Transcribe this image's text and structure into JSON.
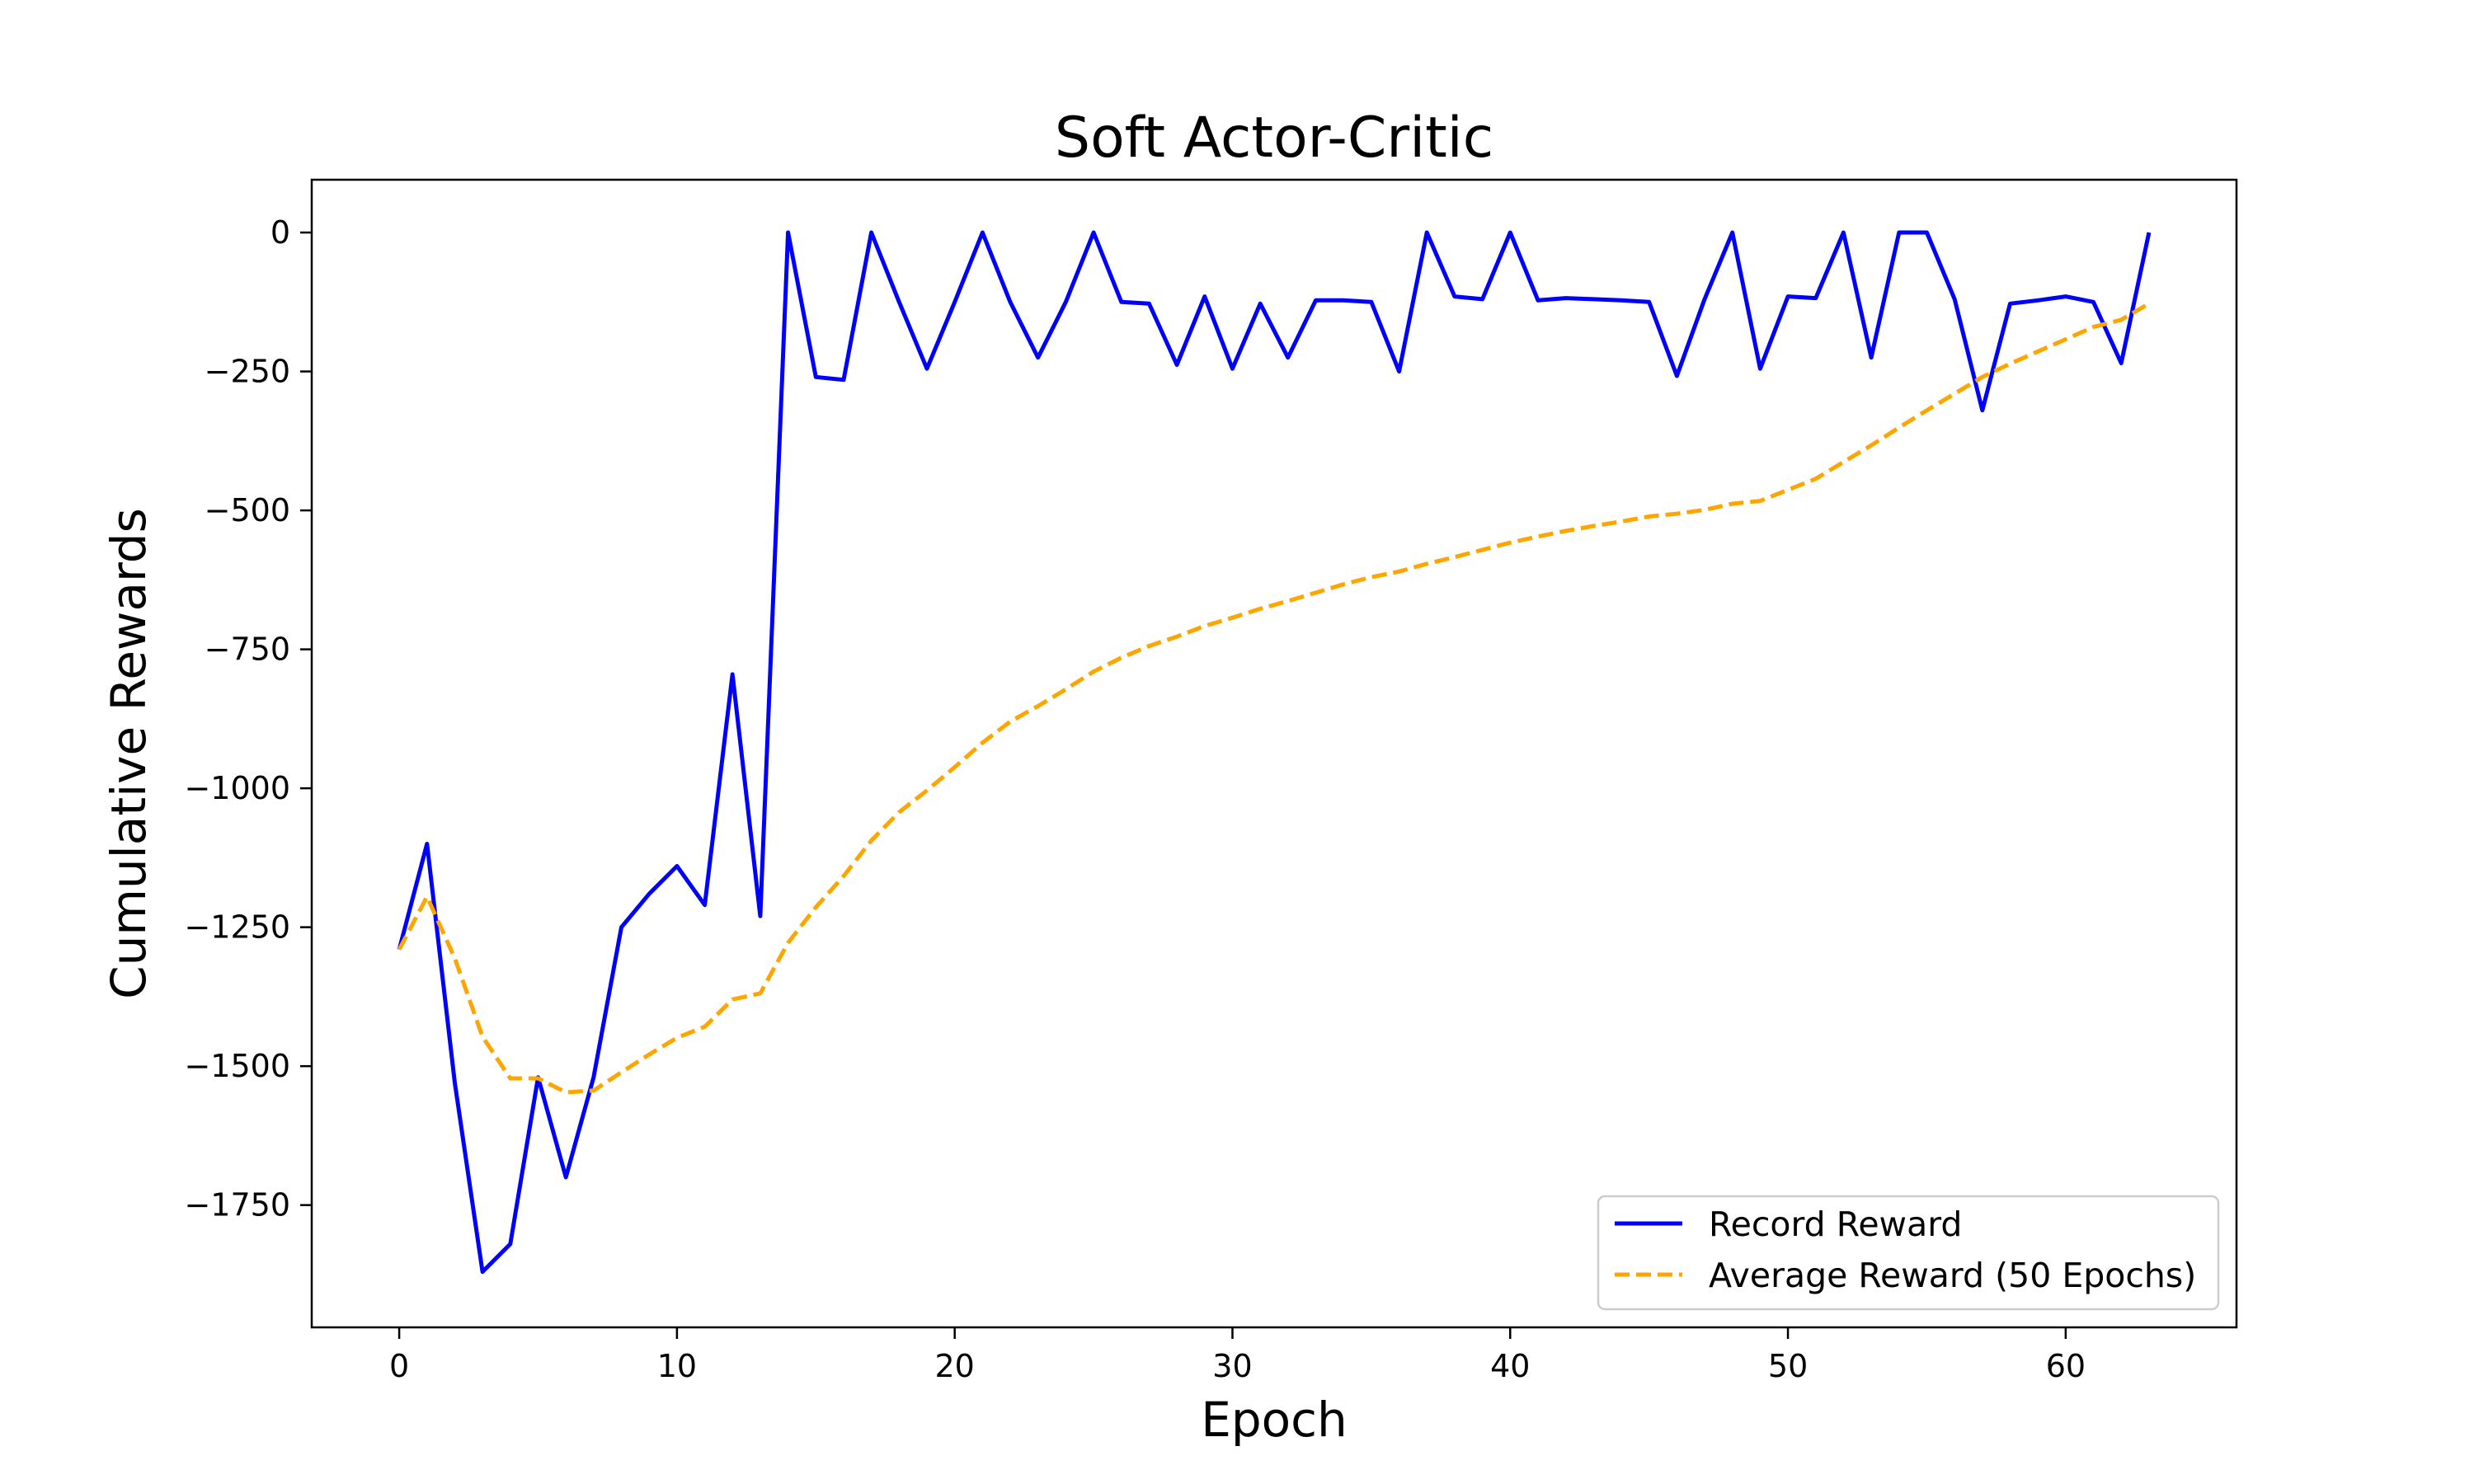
{
  "chart_data": {
    "type": "line",
    "title": "Soft Actor-Critic",
    "xlabel": "Epoch",
    "ylabel": "Cumulative Rewards",
    "xlim": [
      -3.15,
      66.15
    ],
    "ylim": [
      -1970,
      95
    ],
    "xticks": [
      0,
      10,
      20,
      30,
      40,
      50,
      60
    ],
    "yticks": [
      0,
      -250,
      -500,
      -750,
      -1000,
      -1250,
      -1500,
      -1750
    ],
    "ytick_labels": [
      "0",
      "−250",
      "−500",
      "−750",
      "−1000",
      "−1250",
      "−1500",
      "−1750"
    ],
    "grid": false,
    "legend_position": "lower-right",
    "x": [
      0,
      1,
      2,
      3,
      4,
      5,
      6,
      7,
      8,
      9,
      10,
      11,
      12,
      13,
      14,
      15,
      16,
      17,
      18,
      19,
      20,
      21,
      22,
      23,
      24,
      25,
      26,
      27,
      28,
      29,
      30,
      31,
      32,
      33,
      34,
      35,
      36,
      37,
      38,
      39,
      40,
      41,
      42,
      43,
      44,
      45,
      46,
      47,
      48,
      49,
      50,
      51,
      52,
      53,
      54,
      55,
      56,
      57,
      58,
      59,
      60,
      61,
      62,
      63
    ],
    "series": [
      {
        "name": "Record Reward",
        "color": "#0000ff",
        "style": "solid",
        "values": [
          -1290,
          -1100,
          -1530,
          -1870,
          -1820,
          -1520,
          -1700,
          -1520,
          -1250,
          -1190,
          -1140,
          -1210,
          -795,
          -1230,
          0,
          -260,
          -265,
          0,
          -125,
          -245,
          -125,
          0,
          -125,
          -225,
          -125,
          0,
          -125,
          -128,
          -238,
          -115,
          -245,
          -128,
          -225,
          -122,
          -122,
          -125,
          -250,
          0,
          -115,
          -120,
          0,
          -122,
          -118,
          -120,
          -122,
          -125,
          -258,
          -120,
          0,
          -245,
          -115,
          -118,
          0,
          -225,
          0,
          0,
          -120,
          -320,
          -128,
          -122,
          -115,
          -125,
          -235,
          0
        ]
      },
      {
        "name": "Average Reward (50 Epochs)",
        "color": "#ffa500",
        "style": "dashed",
        "values": [
          -1290,
          -1195,
          -1306,
          -1447,
          -1522,
          -1522,
          -1547,
          -1544,
          -1511,
          -1479,
          -1449,
          -1429,
          -1380,
          -1369,
          -1278,
          -1214,
          -1158,
          -1094,
          -1043,
          -1004,
          -962,
          -918,
          -880,
          -852,
          -822,
          -790,
          -765,
          -744,
          -727,
          -708,
          -693,
          -677,
          -663,
          -648,
          -633,
          -620,
          -610,
          -596,
          -584,
          -571,
          -558,
          -547,
          -537,
          -528,
          -520,
          -511,
          -506,
          -499,
          -488,
          -483,
          -463,
          -443,
          -413,
          -383,
          -351,
          -320,
          -290,
          -260,
          -236,
          -214,
          -192,
          -170,
          -157,
          -128
        ]
      }
    ]
  }
}
